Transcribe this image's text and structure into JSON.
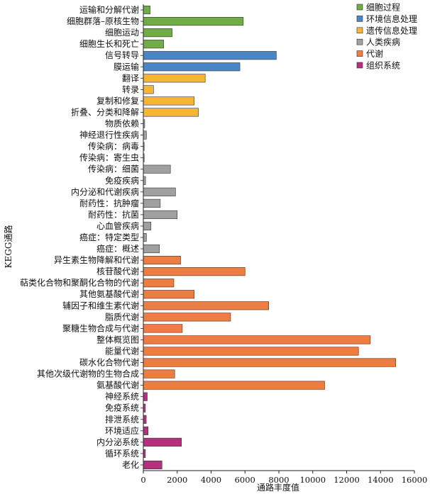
{
  "chart_data": {
    "type": "bar",
    "orientation": "horizontal",
    "xlabel": "通路丰度值",
    "ylabel": "KEGG通路",
    "xlim": [
      0,
      16000
    ],
    "xticks": [
      "0",
      "2000",
      "4000",
      "6000",
      "8000",
      "10000",
      "12000",
      "14000",
      "16000"
    ],
    "grid": false,
    "legend_position": "top-right",
    "legend": [
      {
        "name": "细胞过程",
        "color": "#70ad47"
      },
      {
        "name": "环境信息处理",
        "color": "#4a86c5"
      },
      {
        "name": "遗传信息处理",
        "color": "#f5b536"
      },
      {
        "name": "人类疾病",
        "color": "#a0a0a0"
      },
      {
        "name": "代谢",
        "color": "#ed7d40"
      },
      {
        "name": "组织系统",
        "color": "#b5317f"
      }
    ],
    "categories": [
      "运输和分解代谢",
      "细胞群落–原核生物",
      "细胞运动",
      "细胞生长和死亡",
      "信号转导",
      "膜运输",
      "翻译",
      "转录",
      "复制和修复",
      "折叠、分类和降解",
      "物质依赖",
      "神经退行性疾病",
      "传染病：病毒",
      "传染病：寄生虫",
      "传染病：细菌",
      "免疫疾病",
      "内分泌和代谢疾病",
      "耐药性：抗肿瘤",
      "耐药性：抗菌",
      "心血管疾病",
      "癌症：特定类型",
      "癌症：概述",
      "异生素生物降解和代谢",
      "核苷酸代谢",
      "萜类化合物和聚酮化合物的代谢",
      "其他氨基酸代谢",
      "辅因子和维生素代谢",
      "脂质代谢",
      "聚糖生物合成与代谢",
      "整体概览图",
      "能量代谢",
      "碳水化合物代谢",
      "其他次级代谢物的生物合成",
      "氨基酸代谢",
      "神经系统",
      "免疫系统",
      "排泄系统",
      "环境适应",
      "内分泌系统",
      "循环系统",
      "老化"
    ],
    "values": [
      400,
      5900,
      1700,
      1200,
      7850,
      5700,
      3650,
      600,
      3000,
      3250,
      80,
      180,
      50,
      50,
      1600,
      130,
      1900,
      1000,
      2000,
      450,
      180,
      950,
      2200,
      6000,
      1800,
      3000,
      7400,
      5150,
      2300,
      13400,
      12700,
      14900,
      1850,
      10700,
      230,
      120,
      170,
      280,
      2250,
      120,
      1100
    ],
    "groups": [
      "细胞过程",
      "细胞过程",
      "细胞过程",
      "细胞过程",
      "环境信息处理",
      "环境信息处理",
      "遗传信息处理",
      "遗传信息处理",
      "遗传信息处理",
      "遗传信息处理",
      "人类疾病",
      "人类疾病",
      "人类疾病",
      "人类疾病",
      "人类疾病",
      "人类疾病",
      "人类疾病",
      "人类疾病",
      "人类疾病",
      "人类疾病",
      "人类疾病",
      "人类疾病",
      "代谢",
      "代谢",
      "代谢",
      "代谢",
      "代谢",
      "代谢",
      "代谢",
      "代谢",
      "代谢",
      "代谢",
      "代谢",
      "代谢",
      "组织系统",
      "组织系统",
      "组织系统",
      "组织系统",
      "组织系统",
      "组织系统",
      "组织系统"
    ]
  }
}
